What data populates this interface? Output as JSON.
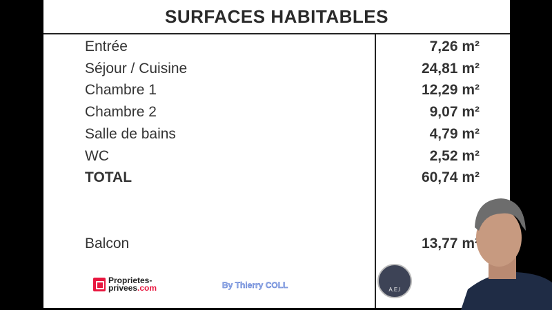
{
  "title": "SURFACES HABITABLES",
  "rows": [
    {
      "label": "Entrée",
      "value": "7,26 m²"
    },
    {
      "label": "Séjour / Cuisine",
      "value": "24,81 m²"
    },
    {
      "label": "Chambre 1",
      "value": "12,29 m²"
    },
    {
      "label": "Chambre 2",
      "value": "9,07 m²"
    },
    {
      "label": "Salle de bains",
      "value": "4,79 m²"
    },
    {
      "label": "WC",
      "value": "2,52 m²"
    },
    {
      "label": "TOTAL",
      "value": "60,74 m²"
    },
    {
      "label": "Balcon",
      "value": "13,77 m²"
    }
  ],
  "logo": {
    "line1": "Proprietes-",
    "line2a": "privees",
    "line2b": ".com"
  },
  "byline": "By Thierry COLL",
  "seal_text": "A.E.I"
}
